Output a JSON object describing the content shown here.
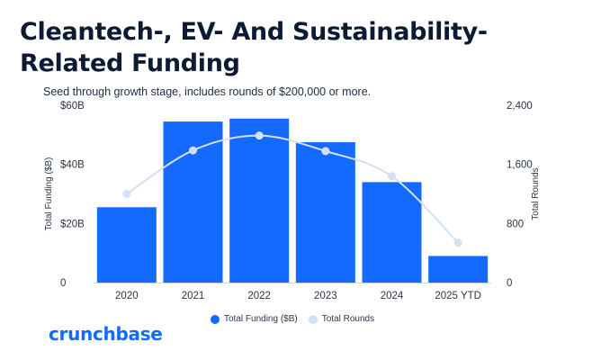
{
  "chart_data": {
    "type": "bar",
    "title": "Cleantech-, EV- And Sustainability-Related Funding",
    "subtitle": "Seed through growth stage, includes rounds of $200,000 or more.",
    "categories": [
      "2020",
      "2021",
      "2022",
      "2023",
      "2024",
      "2025 YTD"
    ],
    "series": [
      {
        "name": "Total Funding ($B)",
        "type": "bar",
        "axis": "left",
        "color": "#146aff",
        "values": [
          25.5,
          54.5,
          55.5,
          47.5,
          34,
          9
        ]
      },
      {
        "name": "Total Rounds",
        "type": "line",
        "axis": "right",
        "color": "#d3e0f5",
        "values": [
          1200,
          1790,
          1990,
          1780,
          1440,
          540
        ]
      }
    ],
    "ylabel": "Total Funding ($B)",
    "y2label": "Total Rounds",
    "ylim": [
      0,
      60
    ],
    "y2lim": [
      0,
      2400
    ],
    "yticks": [
      "0",
      "$20B",
      "$40B",
      "$60B"
    ],
    "y2ticks": [
      "0",
      "800",
      "1,600",
      "2,400"
    ],
    "legend_position": "bottom"
  },
  "brand": {
    "logo_text": "crunchbase",
    "accent": "#146aff"
  }
}
